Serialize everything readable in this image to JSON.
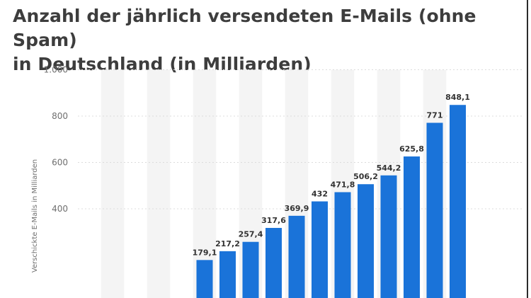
{
  "title": {
    "line1": "Anzahl der jährlich versendeten E-Mails (ohne Spam)",
    "line2": "in Deutschland (in Milliarden)"
  },
  "chart_data": {
    "type": "bar",
    "title": "Anzahl der jährlich versendeten E-Mails (ohne Spam) in Deutschland (in Milliarden)",
    "ylabel": "Verschickte E-Mails in Milliarden",
    "ylim": [
      0,
      1000
    ],
    "yticks": [
      {
        "value": 400,
        "label": "400"
      },
      {
        "value": 600,
        "label": "600"
      },
      {
        "value": 800,
        "label": "800"
      },
      {
        "value": 1000,
        "label": "1.000"
      }
    ],
    "grid": true,
    "bar_color": "#1a73d9",
    "band_color": "#f4f4f4",
    "values": [
      null,
      null,
      null,
      null,
      null,
      179.1,
      217.2,
      257.4,
      317.6,
      369.9,
      432,
      471.8,
      506.2,
      544.2,
      625.8,
      771,
      848.1
    ],
    "labels": [
      "",
      "",
      "",
      "",
      "",
      "179,1",
      "217,2",
      "257,4",
      "317,6",
      "369,9",
      "432",
      "471,8",
      "506,2",
      "544,2",
      "625,8",
      "771",
      "848,1"
    ]
  }
}
